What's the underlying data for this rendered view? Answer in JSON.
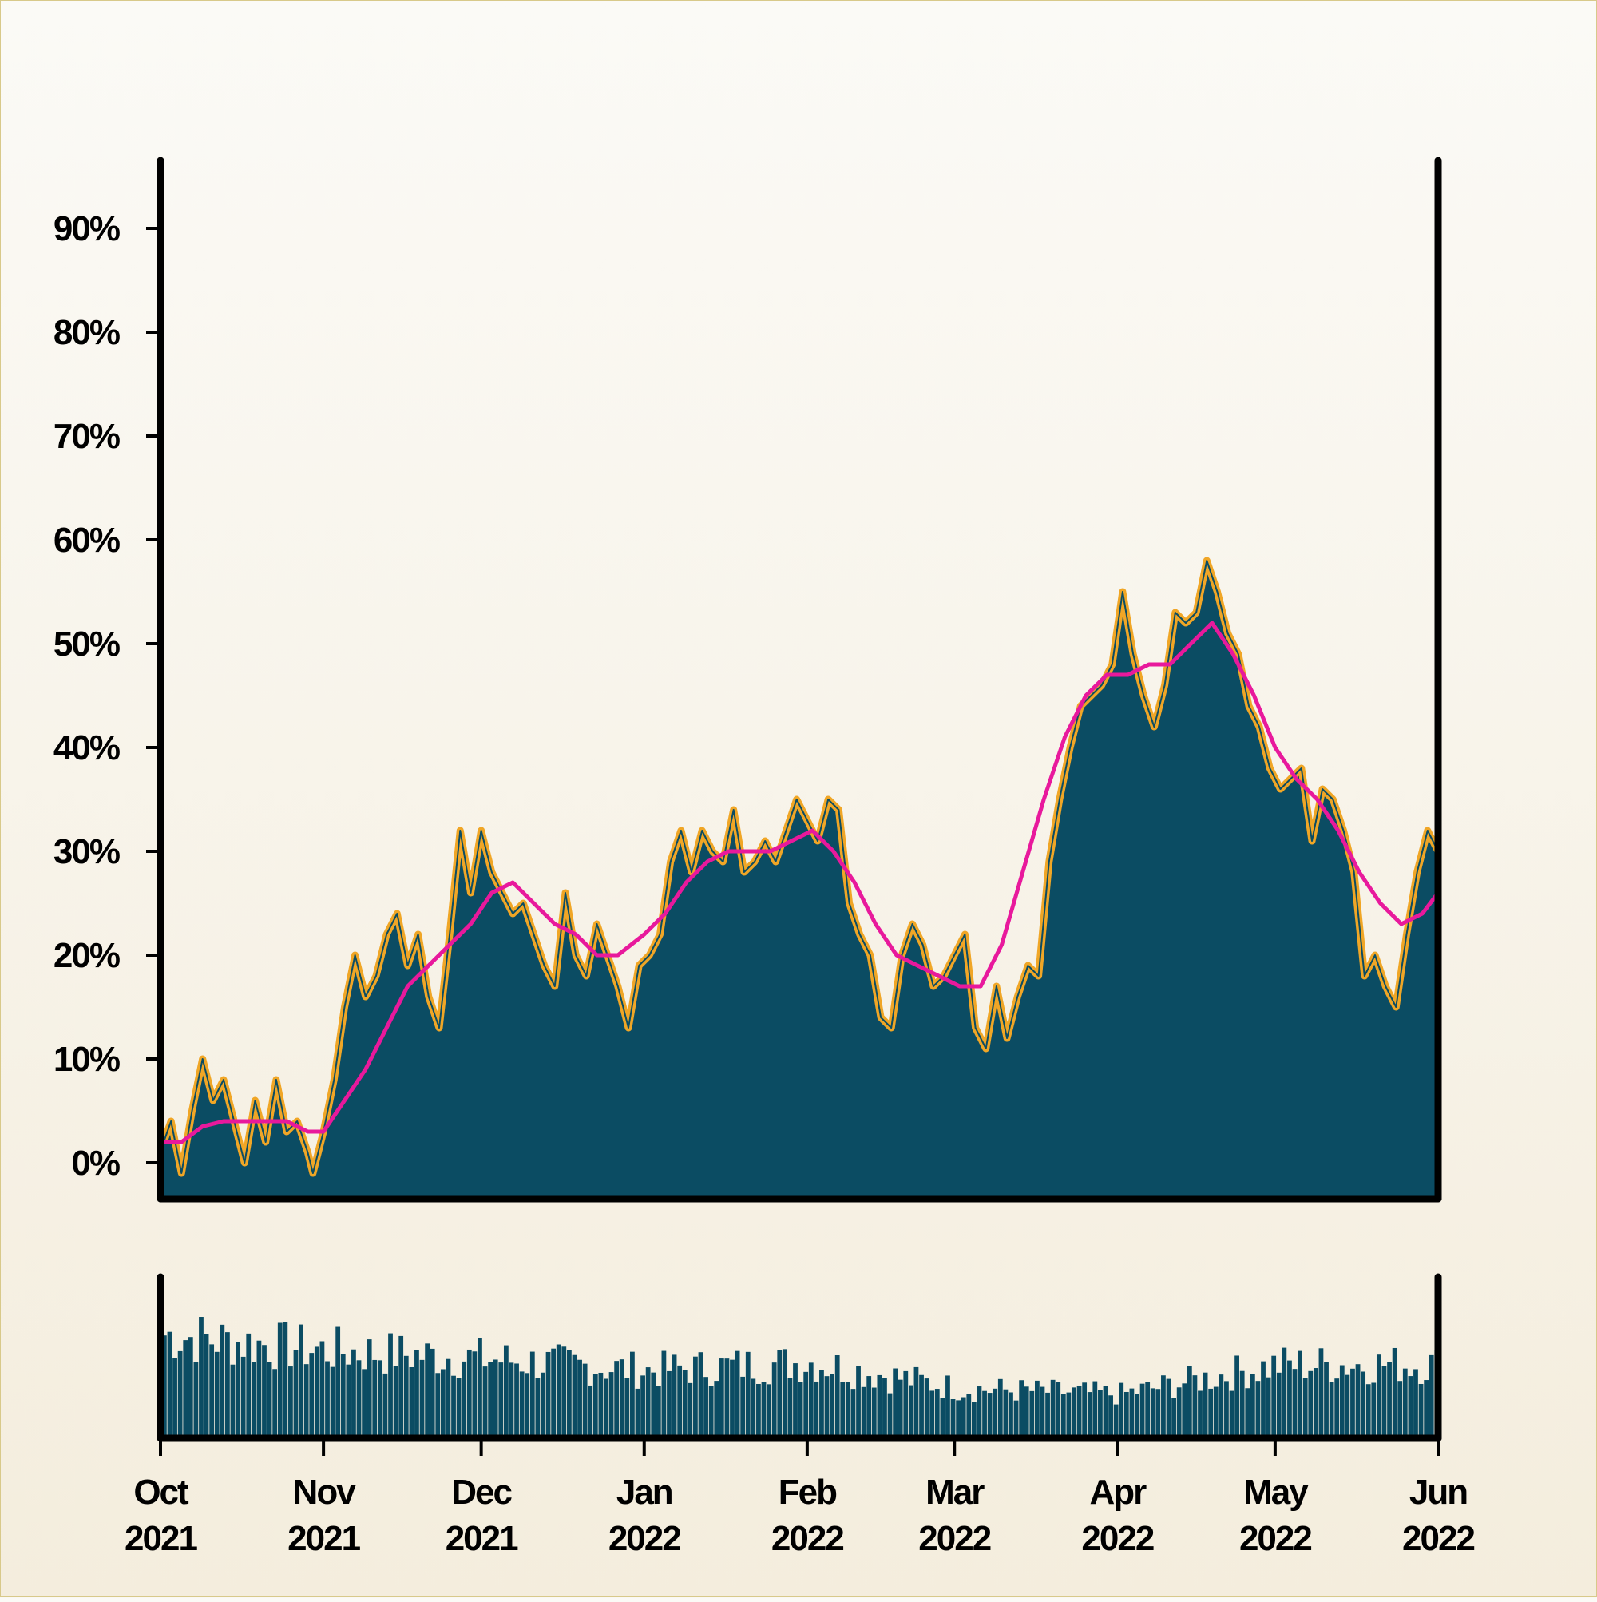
{
  "chart_data": [
    {
      "type": "area",
      "title": "",
      "xlabel": "",
      "ylabel": "",
      "x_range": [
        "2021-10-01",
        "2022-06-01"
      ],
      "ylim": [
        -3,
        97
      ],
      "y_ticks": [
        0,
        10,
        20,
        30,
        40,
        50,
        60,
        70,
        80,
        90
      ],
      "y_tick_labels": [
        "0%",
        "10%",
        "20%",
        "30%",
        "40%",
        "50%",
        "60%",
        "70%",
        "80%",
        "90%"
      ],
      "x_tick_labels": [
        {
          "month": "Oct",
          "year": "2021",
          "date": "2021-10-01"
        },
        {
          "month": "Nov",
          "year": "2021",
          "date": "2021-11-01"
        },
        {
          "month": "Dec",
          "year": "2021",
          "date": "2021-12-01"
        },
        {
          "month": "Jan",
          "year": "2022",
          "date": "2022-01-01"
        },
        {
          "month": "Feb",
          "year": "2022",
          "date": "2022-02-01"
        },
        {
          "month": "Mar",
          "year": "2022",
          "date": "2022-03-01"
        },
        {
          "month": "Apr",
          "year": "2022",
          "date": "2022-04-01"
        },
        {
          "month": "May",
          "year": "2022",
          "date": "2022-05-01"
        },
        {
          "month": "Jun",
          "year": "2022",
          "date": "2022-06-01"
        }
      ],
      "grid": false,
      "legend": "none",
      "colors": {
        "area": "#0b4c63",
        "area_edge": "#f0a626",
        "moving_average": "#e8199c",
        "axis": "#000000"
      },
      "series": [
        {
          "kind": "daily_area",
          "points": [
            [
              "2021-10-01",
              2
            ],
            [
              "2021-10-03",
              4
            ],
            [
              "2021-10-05",
              -1
            ],
            [
              "2021-10-07",
              5
            ],
            [
              "2021-10-09",
              10
            ],
            [
              "2021-10-11",
              6
            ],
            [
              "2021-10-13",
              8
            ],
            [
              "2021-10-15",
              4
            ],
            [
              "2021-10-17",
              0
            ],
            [
              "2021-10-19",
              6
            ],
            [
              "2021-10-21",
              2
            ],
            [
              "2021-10-23",
              8
            ],
            [
              "2021-10-25",
              3
            ],
            [
              "2021-10-27",
              4
            ],
            [
              "2021-10-29",
              1
            ],
            [
              "2021-10-30",
              -1
            ],
            [
              "2021-11-01",
              3
            ],
            [
              "2021-11-03",
              8
            ],
            [
              "2021-11-05",
              15
            ],
            [
              "2021-11-07",
              20
            ],
            [
              "2021-11-09",
              16
            ],
            [
              "2021-11-11",
              18
            ],
            [
              "2021-11-13",
              22
            ],
            [
              "2021-11-15",
              24
            ],
            [
              "2021-11-17",
              19
            ],
            [
              "2021-11-19",
              22
            ],
            [
              "2021-11-21",
              16
            ],
            [
              "2021-11-23",
              13
            ],
            [
              "2021-11-25",
              22
            ],
            [
              "2021-11-27",
              32
            ],
            [
              "2021-11-29",
              26
            ],
            [
              "2021-12-01",
              32
            ],
            [
              "2021-12-03",
              28
            ],
            [
              "2021-12-05",
              26
            ],
            [
              "2021-12-07",
              24
            ],
            [
              "2021-12-09",
              25
            ],
            [
              "2021-12-11",
              22
            ],
            [
              "2021-12-13",
              19
            ],
            [
              "2021-12-15",
              17
            ],
            [
              "2021-12-17",
              26
            ],
            [
              "2021-12-19",
              20
            ],
            [
              "2021-12-21",
              18
            ],
            [
              "2021-12-23",
              23
            ],
            [
              "2021-12-25",
              20
            ],
            [
              "2021-12-27",
              17
            ],
            [
              "2021-12-29",
              13
            ],
            [
              "2021-12-31",
              19
            ],
            [
              "2022-01-02",
              20
            ],
            [
              "2022-01-04",
              22
            ],
            [
              "2022-01-06",
              29
            ],
            [
              "2022-01-08",
              32
            ],
            [
              "2022-01-10",
              28
            ],
            [
              "2022-01-12",
              32
            ],
            [
              "2022-01-14",
              30
            ],
            [
              "2022-01-16",
              29
            ],
            [
              "2022-01-18",
              34
            ],
            [
              "2022-01-20",
              28
            ],
            [
              "2022-01-22",
              29
            ],
            [
              "2022-01-24",
              31
            ],
            [
              "2022-01-26",
              29
            ],
            [
              "2022-01-28",
              32
            ],
            [
              "2022-01-30",
              35
            ],
            [
              "2022-02-01",
              33
            ],
            [
              "2022-02-03",
              31
            ],
            [
              "2022-02-05",
              35
            ],
            [
              "2022-02-07",
              34
            ],
            [
              "2022-02-09",
              25
            ],
            [
              "2022-02-11",
              22
            ],
            [
              "2022-02-13",
              20
            ],
            [
              "2022-02-15",
              14
            ],
            [
              "2022-02-17",
              13
            ],
            [
              "2022-02-19",
              20
            ],
            [
              "2022-02-21",
              23
            ],
            [
              "2022-02-23",
              21
            ],
            [
              "2022-02-25",
              17
            ],
            [
              "2022-02-27",
              18
            ],
            [
              "2022-03-01",
              20
            ],
            [
              "2022-03-03",
              22
            ],
            [
              "2022-03-05",
              13
            ],
            [
              "2022-03-07",
              11
            ],
            [
              "2022-03-09",
              17
            ],
            [
              "2022-03-11",
              12
            ],
            [
              "2022-03-13",
              16
            ],
            [
              "2022-03-15",
              19
            ],
            [
              "2022-03-17",
              18
            ],
            [
              "2022-03-19",
              29
            ],
            [
              "2022-03-21",
              35
            ],
            [
              "2022-03-23",
              40
            ],
            [
              "2022-03-25",
              44
            ],
            [
              "2022-03-27",
              45
            ],
            [
              "2022-03-29",
              46
            ],
            [
              "2022-03-31",
              48
            ],
            [
              "2022-04-02",
              55
            ],
            [
              "2022-04-04",
              49
            ],
            [
              "2022-04-06",
              45
            ],
            [
              "2022-04-08",
              42
            ],
            [
              "2022-04-10",
              46
            ],
            [
              "2022-04-12",
              53
            ],
            [
              "2022-04-14",
              52
            ],
            [
              "2022-04-16",
              53
            ],
            [
              "2022-04-18",
              58
            ],
            [
              "2022-04-20",
              55
            ],
            [
              "2022-04-22",
              51
            ],
            [
              "2022-04-24",
              49
            ],
            [
              "2022-04-26",
              44
            ],
            [
              "2022-04-28",
              42
            ],
            [
              "2022-04-30",
              38
            ],
            [
              "2022-05-02",
              36
            ],
            [
              "2022-05-04",
              37
            ],
            [
              "2022-05-06",
              38
            ],
            [
              "2022-05-08",
              31
            ],
            [
              "2022-05-10",
              36
            ],
            [
              "2022-05-12",
              35
            ],
            [
              "2022-05-14",
              32
            ],
            [
              "2022-05-16",
              28
            ],
            [
              "2022-05-18",
              18
            ],
            [
              "2022-05-20",
              20
            ],
            [
              "2022-05-22",
              17
            ],
            [
              "2022-05-24",
              15
            ],
            [
              "2022-05-26",
              22
            ],
            [
              "2022-05-28",
              28
            ],
            [
              "2022-05-30",
              32
            ],
            [
              "2022-06-01",
              30
            ]
          ]
        },
        {
          "kind": "moving_average",
          "points": [
            [
              "2021-10-01",
              2
            ],
            [
              "2021-10-05",
              2
            ],
            [
              "2021-10-09",
              3.5
            ],
            [
              "2021-10-13",
              4
            ],
            [
              "2021-10-17",
              4
            ],
            [
              "2021-10-21",
              4
            ],
            [
              "2021-10-25",
              4
            ],
            [
              "2021-10-29",
              3
            ],
            [
              "2021-11-01",
              3
            ],
            [
              "2021-11-05",
              6
            ],
            [
              "2021-11-09",
              9
            ],
            [
              "2021-11-13",
              13
            ],
            [
              "2021-11-17",
              17
            ],
            [
              "2021-11-21",
              19
            ],
            [
              "2021-11-25",
              21
            ],
            [
              "2021-11-29",
              23
            ],
            [
              "2021-12-03",
              26
            ],
            [
              "2021-12-07",
              27
            ],
            [
              "2021-12-11",
              25
            ],
            [
              "2021-12-15",
              23
            ],
            [
              "2021-12-19",
              22
            ],
            [
              "2021-12-23",
              20
            ],
            [
              "2021-12-27",
              20
            ],
            [
              "2022-01-01",
              22
            ],
            [
              "2022-01-05",
              24
            ],
            [
              "2022-01-09",
              27
            ],
            [
              "2022-01-13",
              29
            ],
            [
              "2022-01-17",
              30
            ],
            [
              "2022-01-21",
              30
            ],
            [
              "2022-01-25",
              30
            ],
            [
              "2022-01-29",
              31
            ],
            [
              "2022-02-02",
              32
            ],
            [
              "2022-02-06",
              30
            ],
            [
              "2022-02-10",
              27
            ],
            [
              "2022-02-14",
              23
            ],
            [
              "2022-02-18",
              20
            ],
            [
              "2022-02-22",
              19
            ],
            [
              "2022-02-26",
              18
            ],
            [
              "2022-03-02",
              17
            ],
            [
              "2022-03-06",
              17
            ],
            [
              "2022-03-10",
              21
            ],
            [
              "2022-03-14",
              28
            ],
            [
              "2022-03-18",
              35
            ],
            [
              "2022-03-22",
              41
            ],
            [
              "2022-03-26",
              45
            ],
            [
              "2022-03-30",
              47
            ],
            [
              "2022-04-03",
              47
            ],
            [
              "2022-04-07",
              48
            ],
            [
              "2022-04-11",
              48
            ],
            [
              "2022-04-15",
              50
            ],
            [
              "2022-04-19",
              52
            ],
            [
              "2022-04-23",
              49
            ],
            [
              "2022-04-27",
              45
            ],
            [
              "2022-05-01",
              40
            ],
            [
              "2022-05-05",
              37
            ],
            [
              "2022-05-09",
              35
            ],
            [
              "2022-05-13",
              32
            ],
            [
              "2022-05-17",
              28
            ],
            [
              "2022-05-21",
              25
            ],
            [
              "2022-05-25",
              23
            ],
            [
              "2022-05-29",
              24
            ],
            [
              "2022-06-01",
              26
            ]
          ]
        }
      ]
    },
    {
      "type": "bar",
      "title": "",
      "xlabel": "",
      "ylabel": "",
      "x_range": [
        "2021-10-01",
        "2022-06-01"
      ],
      "ylim": [
        0,
        1
      ],
      "color": "#0b4c63",
      "period_levels": [
        [
          "2021-10-01",
          0.85
        ],
        [
          "2021-11-01",
          0.72
        ],
        [
          "2021-12-01",
          0.65
        ],
        [
          "2022-01-01",
          0.55
        ],
        [
          "2022-02-01",
          0.62
        ],
        [
          "2022-03-01",
          0.4
        ],
        [
          "2022-04-01",
          0.35
        ],
        [
          "2022-05-01",
          0.6
        ]
      ]
    }
  ]
}
